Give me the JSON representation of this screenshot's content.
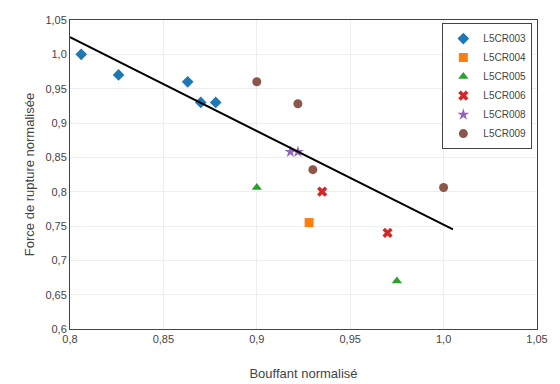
{
  "chart_data": {
    "type": "scatter",
    "xlabel": "Bouffant normalisé",
    "ylabel": "Force de rupture normalisée",
    "xlim": [
      0.8,
      1.05
    ],
    "ylim": [
      0.6,
      1.05
    ],
    "xticks": [
      {
        "value": 0.8,
        "label": "0,8"
      },
      {
        "value": 0.85,
        "label": "0,85"
      },
      {
        "value": 0.9,
        "label": "0,9"
      },
      {
        "value": 0.95,
        "label": "0,95"
      },
      {
        "value": 1.0,
        "label": "1,0"
      },
      {
        "value": 1.05,
        "label": "1,05"
      }
    ],
    "yticks": [
      {
        "value": 0.6,
        "label": "0,6"
      },
      {
        "value": 0.65,
        "label": "0,65"
      },
      {
        "value": 0.7,
        "label": "0,7"
      },
      {
        "value": 0.75,
        "label": "0,75"
      },
      {
        "value": 0.8,
        "label": "0,8"
      },
      {
        "value": 0.85,
        "label": "0,85"
      },
      {
        "value": 0.9,
        "label": "0,9"
      },
      {
        "value": 0.95,
        "label": "0,95"
      },
      {
        "value": 1.0,
        "label": "1,0"
      },
      {
        "value": 1.05,
        "label": "1,05"
      }
    ],
    "grid": true,
    "legend": "upper right",
    "series": [
      {
        "name": "L5CR003",
        "marker": "diamond",
        "x": [
          0.806,
          0.826,
          0.863,
          0.87,
          0.878
        ],
        "values": [
          1.0,
          0.97,
          0.96,
          0.93,
          0.93
        ]
      },
      {
        "name": "L5CR004",
        "marker": "square",
        "x": [
          0.928
        ],
        "values": [
          0.755
        ]
      },
      {
        "name": "L5CR005",
        "marker": "triangle-up",
        "x": [
          0.9,
          0.975
        ],
        "values": [
          0.806,
          0.67
        ]
      },
      {
        "name": "L5CR006",
        "marker": "x",
        "x": [
          0.935,
          0.97
        ],
        "values": [
          0.8,
          0.74
        ]
      },
      {
        "name": "L5CR008",
        "marker": "star",
        "x": [
          0.918,
          0.922
        ],
        "values": [
          0.858,
          0.858
        ]
      },
      {
        "name": "L5CR009",
        "marker": "circle",
        "x": [
          0.9,
          0.922,
          0.93,
          1.0
        ],
        "values": [
          0.96,
          0.928,
          0.832,
          0.806
        ]
      },
      {
        "type": "line",
        "color": "black",
        "x": [
          0.8,
          1.005
        ],
        "values": [
          1.025,
          0.745
        ]
      }
    ]
  }
}
